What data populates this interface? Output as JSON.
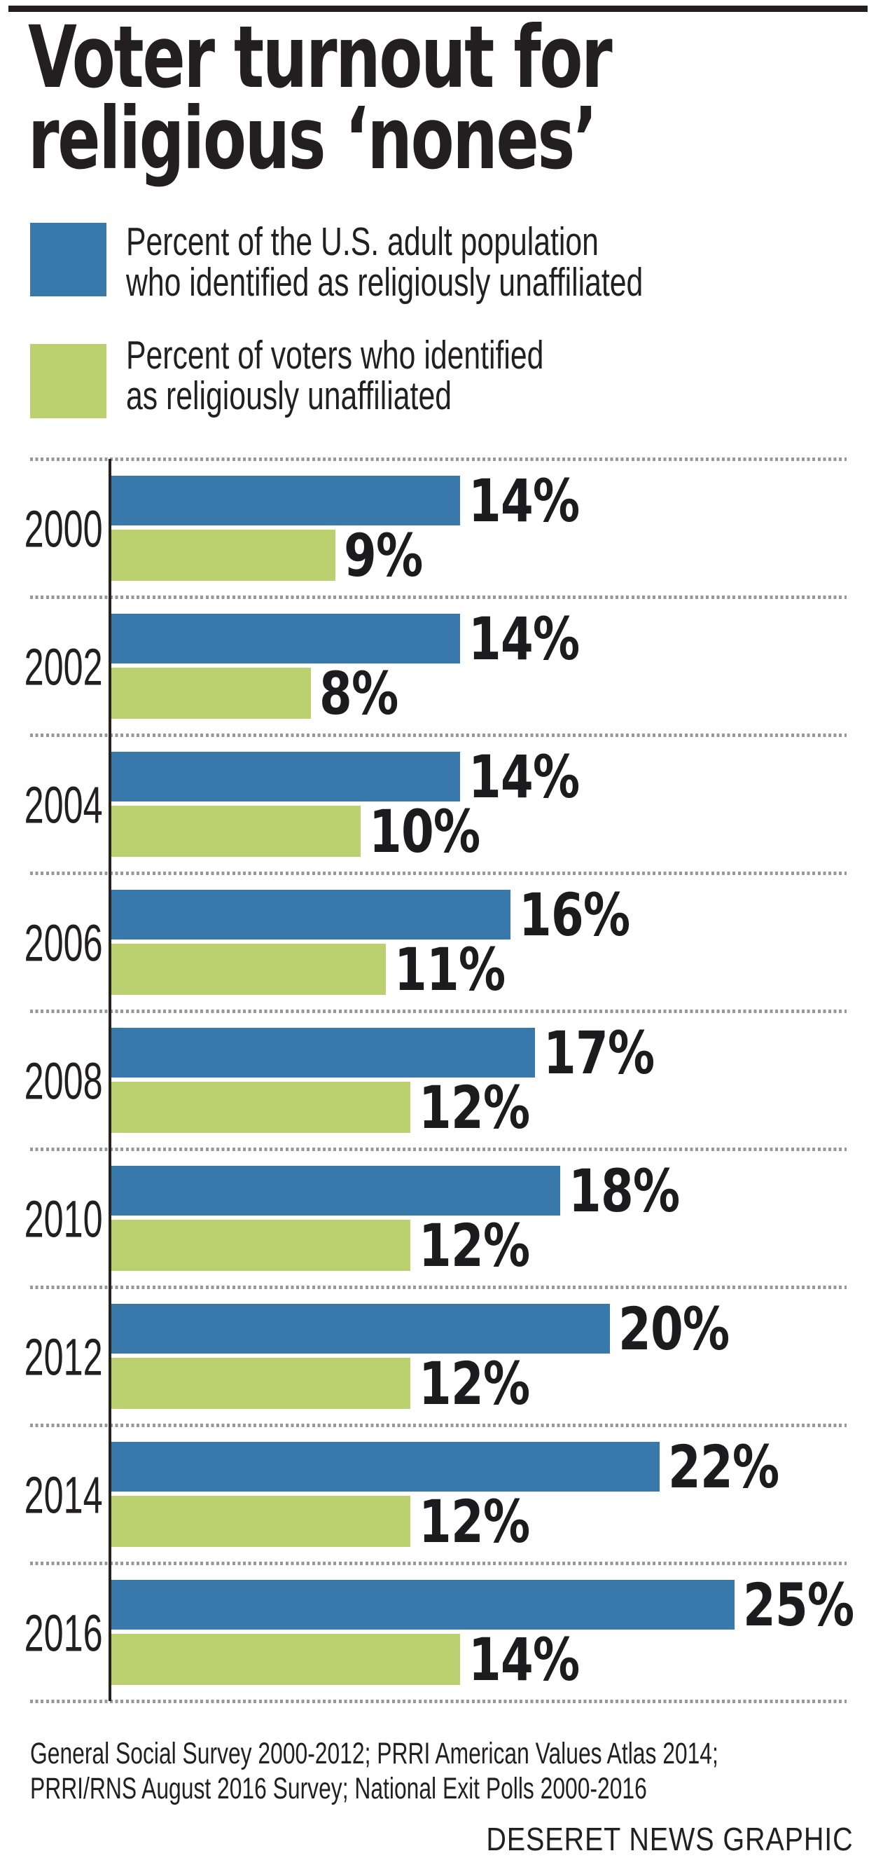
{
  "page": {
    "background": "#ffffff",
    "top_rule_color": "#231f20"
  },
  "title": {
    "line1": "Voter turnout for",
    "line2": "religious ‘nones’"
  },
  "legend": {
    "items": [
      {
        "swatch_color": "#3878aa",
        "lines": [
          "Percent of the U.S. adult population",
          "who identified as religiously unaffiliated"
        ]
      },
      {
        "swatch_color": "#bbd170",
        "lines": [
          "Percent of voters who identified",
          "as religiously unaffiliated"
        ]
      }
    ]
  },
  "chart_data": {
    "type": "bar",
    "orientation": "horizontal",
    "unit": "percent",
    "title": "Voter turnout for religious ‘nones’",
    "categories": [
      "2000",
      "2002",
      "2004",
      "2006",
      "2008",
      "2010",
      "2012",
      "2014",
      "2016"
    ],
    "series": [
      {
        "name": "Percent of the U.S. adult population who identified as religiously unaffiliated",
        "color": "#3878aa",
        "values": [
          14,
          14,
          14,
          16,
          17,
          18,
          20,
          22,
          25
        ],
        "labels": [
          "14%",
          "14%",
          "14%",
          "16%",
          "17%",
          "18%",
          "20%",
          "22%",
          "25%"
        ]
      },
      {
        "name": "Percent of voters who identified as religiously unaffiliated",
        "color": "#bbd170",
        "values": [
          9,
          8,
          10,
          11,
          12,
          12,
          12,
          12,
          14
        ],
        "labels": [
          "9%",
          "8%",
          "10%",
          "11%",
          "12%",
          "12%",
          "12%",
          "12%",
          "14%"
        ]
      }
    ],
    "xlim": [
      0,
      27
    ],
    "value_labels_shown": true,
    "gridlines": "dotted horizontal separators between year groups",
    "legend_position": "top",
    "axis_color": "#29211d",
    "separator_color": "#96989a",
    "value_text_color": "#1c1c1e"
  },
  "source": {
    "lines": [
      "General Social Survey 2000-2012; PRRI American Values Atlas 2014;",
      "PRRI/RNS August 2016 Survey; National Exit Polls 2000-2016"
    ]
  },
  "credit": "DESERET NEWS GRAPHIC"
}
